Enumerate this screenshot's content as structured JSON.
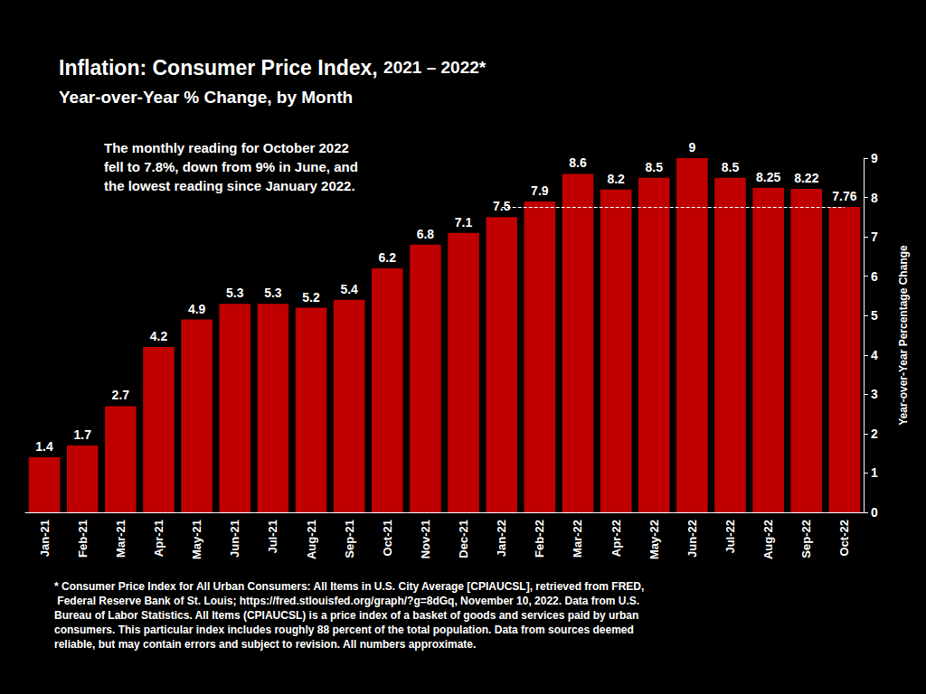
{
  "chart_data": {
    "type": "bar",
    "title": "Inflation: Consumer Price Index, 2021 – 2022*",
    "subtitle": "Year-over-Year % Change, by Month",
    "y_label": "Year-over-Year Percentage Change",
    "annotation": "The monthly reading for October 2022 fell to 7.8%, down from 9% in June, and the lowest reading since January 2022.",
    "footnote": "* Consumer Price Index for All Urban Consumers: All Items in U.S. City Average [CPIAUCSL], retrieved from FRED, Federal Reserve Bank of St. Louis; https://fred.stlouisfed.org/graph/?g=8dGq, November 10, 2022. Data from U.S. Bureau of Labor Statistics. All Items (CPIAUCSL) is a price index of a basket of goods and services paid by urban consumers. This particular index includes roughly 88 percent of the total population. Data from sources deemed reliable, but may contain errors and subject to revision. All numbers approximate.",
    "categories": [
      "Jan-21",
      "Feb-21",
      "Mar-21",
      "Apr-21",
      "May-21",
      "Jun-21",
      "Jul-21",
      "Aug-21",
      "Sep-21",
      "Oct-21",
      "Nov-21",
      "Dec-21",
      "Jan-22",
      "Feb-22",
      "Mar-22",
      "Apr-22",
      "May-22",
      "Jun-22",
      "Jul-22",
      "Aug-22",
      "Sep-22",
      "Oct-22"
    ],
    "values": [
      1.4,
      1.7,
      2.7,
      4.2,
      4.9,
      5.3,
      5.3,
      5.2,
      5.4,
      6.2,
      6.8,
      7.1,
      7.5,
      7.9,
      8.6,
      8.2,
      8.5,
      9,
      8.5,
      8.25,
      8.22,
      7.76
    ],
    "color": "#c00000",
    "ylim": [
      0,
      9
    ],
    "yticks": [
      0,
      1,
      2,
      3,
      4,
      5,
      6,
      7,
      8,
      9
    ],
    "grid": false,
    "data_labels": true,
    "reference_line": {
      "value": 7.76,
      "from": "Jan-22",
      "to": "Oct-22"
    }
  }
}
